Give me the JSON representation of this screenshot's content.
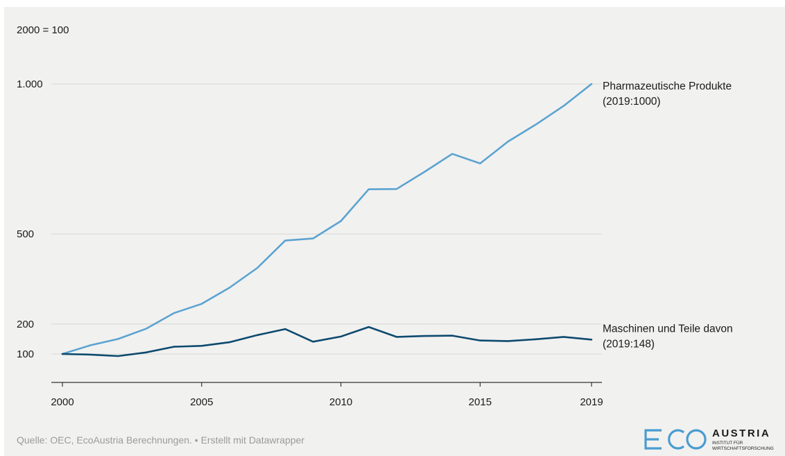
{
  "chart_data": {
    "type": "line",
    "unit_label": "2000 = 100",
    "x": [
      2000,
      2001,
      2002,
      2003,
      2004,
      2005,
      2006,
      2007,
      2008,
      2009,
      2010,
      2011,
      2012,
      2013,
      2014,
      2015,
      2016,
      2017,
      2018,
      2019
    ],
    "x_ticks": [
      "2000",
      "2005",
      "2010",
      "2015",
      "2019"
    ],
    "y_ticks": [
      {
        "value": 100,
        "label": "100"
      },
      {
        "value": 200,
        "label": "200"
      },
      {
        "value": 500,
        "label": "500"
      },
      {
        "value": 1000,
        "label": "1.000"
      }
    ],
    "ylim": [
      100,
      1000
    ],
    "grid": true,
    "series": [
      {
        "name": "Pharmazeutische Produkte",
        "end_label": "(2019:1000)",
        "color": "#5ba3d0",
        "values": [
          100,
          129,
          150,
          184,
          236,
          267,
          321,
          387,
          478,
          485,
          543,
          649,
          650,
          707,
          767,
          735,
          808,
          865,
          927,
          1000
        ]
      },
      {
        "name": "Maschinen und Teile davon",
        "end_label": "(2019:148)",
        "color": "#0d4a6e",
        "values": [
          100,
          98,
          93,
          105,
          124,
          127,
          139,
          163,
          183,
          141,
          158,
          190,
          157,
          160,
          161,
          145,
          143,
          149,
          157,
          148
        ]
      }
    ]
  },
  "footer": {
    "source": "Quelle: OEC, EcoAustria Berechnungen. • Erstellt mit Datawrapper"
  },
  "logo": {
    "name": "AUSTRIA",
    "subtitle": "INSTITUT FÜR\nWIRTSCHAFTSFORSCHUNG",
    "brand_text": "ECO",
    "color": "#4a9cd0"
  }
}
